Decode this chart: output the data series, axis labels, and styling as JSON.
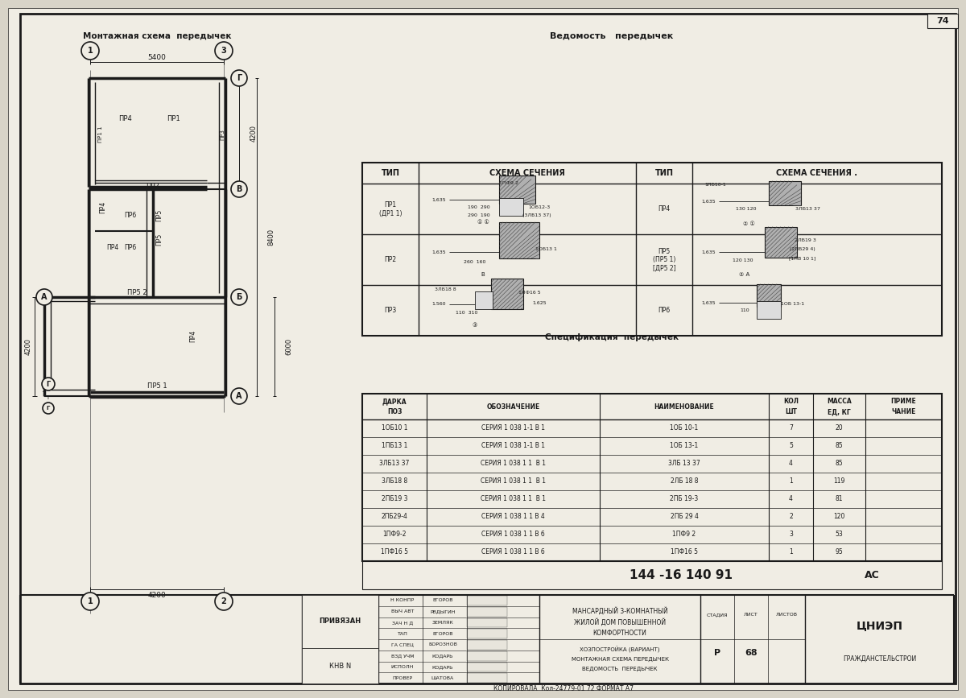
{
  "bg_color": "#d8d4c8",
  "paper_color": "#f0ede4",
  "line_color": "#1a1a1a",
  "page_num": "74",
  "spec_rows": [
    [
      "1ОБ10 1",
      "СЕРИЯ 1 038 1-1 В 1",
      "1ОБ 10-1",
      "7",
      "20",
      ""
    ],
    [
      "1ПБ13 1",
      "СЕРИЯ 1 038 1-1 В 1",
      "1ОБ 13-1",
      "5",
      "85",
      ""
    ],
    [
      "3ЛБ13 37",
      "СЕРИЯ 1 038 1 1  В 1",
      "3ЛБ 13 37",
      "4",
      "85",
      ""
    ],
    [
      "3ЛБ18 8",
      "СЕРИЯ 1 038 1 1  В 1",
      "2ЛБ 18 8",
      "1",
      "119",
      ""
    ],
    [
      "2ПБ19 3",
      "СЕРИЯ 1 038 1 1  В 1",
      "2ПБ 19-3",
      "4",
      "81",
      ""
    ],
    [
      "2ПБ29-4",
      "СЕРИЯ 1 038 1 1 В 4",
      "2ПБ 29 4",
      "2",
      "120",
      ""
    ],
    [
      "1ПФ9-2",
      "СЕРИЯ 1 038 1 1 В 6",
      "1ПФ9 2",
      "3",
      "53",
      ""
    ],
    [
      "1ПФ16 5",
      "СЕРИЯ 1 038 1 1 В 6",
      "1ПФ16 5",
      "1",
      "95",
      ""
    ]
  ],
  "doc_num": "144 -16 140 91",
  "doc_mark": "АС",
  "stamp_rows": [
    [
      "Н КОНПР",
      "ЕГОРОВ"
    ],
    [
      "ВЫЧ АВТ",
      "РВДЫГИН"
    ],
    [
      "ЗАЧ Н Д",
      "ЗЕМЛЯК"
    ],
    [
      "ТАП",
      "ЕГОРОВ"
    ],
    [
      "ГА СПЕЦ",
      "БОРОЗНОВ"
    ],
    [
      "ВЗД УЧМ",
      "КОДАРЬ"
    ],
    [
      "ИСПОЛН",
      "КОДАРЬ"
    ],
    [
      "ПРОВЕР",
      "ШАТОВА"
    ]
  ],
  "building_desc": [
    "МАНСАРДНЫЙ 3-КОМНАТНЫЙ",
    "ЖИЛОЙ ДОМ ПОВЫШЕННОЙ",
    "КОМФОРТНОСТИ"
  ],
  "works": [
    "ХОЗПОСТРОЙКА (ВАРИАНТ)",
    "МОНТАЖНАЯ СХЕМА ПЕРЕДЫЧЕК",
    "ВЕДОМОСТЬ  ПЕРЕДЫЧЕК"
  ],
  "institute": "ЦНИЭП",
  "institute_sub": "ГРАЖДАНСТЕЛЬСТРОИ",
  "stage": "Р",
  "list_num": "68",
  "copy_text": "КОПИРОВАЛА  Кол-24779-01 72 ФОРМАТ А7"
}
